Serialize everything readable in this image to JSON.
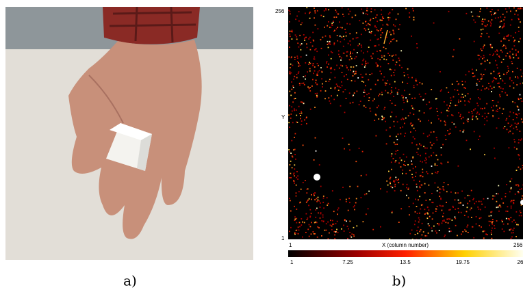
{
  "panels": [
    {
      "label": "a)"
    },
    {
      "label": "b)",
      "y_axis": {
        "label": "Y",
        "ticks": [
          "256",
          "1"
        ]
      },
      "x_axis": {
        "label": "X (column number)",
        "ticks": [
          "1",
          "256"
        ]
      },
      "colorbar": {
        "ticks": [
          "1",
          "7.25",
          "13.5",
          "19.75",
          "26"
        ]
      }
    }
  ]
}
